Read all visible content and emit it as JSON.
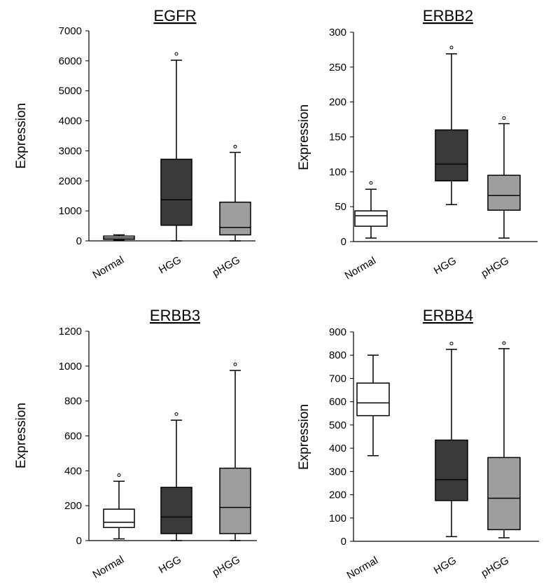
{
  "chart_data": [
    {
      "type": "boxplot",
      "title": "EGFR",
      "ylabel": "Expression",
      "ylim": [
        0,
        7000
      ],
      "yticks": [
        0,
        1000,
        2000,
        3000,
        4000,
        5000,
        6000,
        7000
      ],
      "categories": [
        "Normal",
        "HGG",
        "pHGG"
      ],
      "boxes": [
        {
          "category": "Normal",
          "fill": "#ffffff",
          "min": 20,
          "q1": 50,
          "median": 100,
          "q3": 160,
          "max": 200,
          "outlier": null
        },
        {
          "category": "HGG",
          "fill": "#3a3a3a",
          "min": 0,
          "q1": 520,
          "median": 1370,
          "q3": 2720,
          "max": 6020,
          "outlier": 6230
        },
        {
          "category": "pHGG",
          "fill": "#9e9e9e",
          "min": 0,
          "q1": 200,
          "median": 450,
          "q3": 1290,
          "max": 2950,
          "outlier": 3140
        }
      ]
    },
    {
      "type": "boxplot",
      "title": "ERBB2",
      "ylabel": "Expression",
      "ylim": [
        0,
        300
      ],
      "yticks": [
        0,
        50,
        100,
        150,
        200,
        250,
        300
      ],
      "categories": [
        "Normal",
        "HGG",
        "pHGG"
      ],
      "boxes": [
        {
          "category": "Normal",
          "fill": "#ffffff",
          "min": 5,
          "q1": 22,
          "median": 37,
          "q3": 44,
          "max": 75,
          "outlier": 84
        },
        {
          "category": "HGG",
          "fill": "#3a3a3a",
          "min": 53,
          "q1": 87,
          "median": 111,
          "q3": 160,
          "max": 269,
          "outlier": 278
        },
        {
          "category": "pHGG",
          "fill": "#9e9e9e",
          "min": 5,
          "q1": 45,
          "median": 66,
          "q3": 95,
          "max": 169,
          "outlier": 177
        }
      ]
    },
    {
      "type": "boxplot",
      "title": "ERBB3",
      "ylabel": "Expression",
      "ylim": [
        0,
        1200
      ],
      "yticks": [
        0,
        200,
        400,
        600,
        800,
        1000,
        1200
      ],
      "categories": [
        "Normal",
        "HGG",
        "pHGG"
      ],
      "boxes": [
        {
          "category": "Normal",
          "fill": "#ffffff",
          "min": 10,
          "q1": 75,
          "median": 105,
          "q3": 180,
          "max": 340,
          "outlier": 375
        },
        {
          "category": "HGG",
          "fill": "#3a3a3a",
          "min": 0,
          "q1": 40,
          "median": 135,
          "q3": 305,
          "max": 690,
          "outlier": 725
        },
        {
          "category": "pHGG",
          "fill": "#9e9e9e",
          "min": 0,
          "q1": 40,
          "median": 190,
          "q3": 415,
          "max": 975,
          "outlier": 1010
        }
      ]
    },
    {
      "type": "boxplot",
      "title": "ERBB4",
      "ylabel": "Expression",
      "ylim": [
        0,
        900
      ],
      "yticks": [
        0,
        100,
        200,
        300,
        400,
        500,
        600,
        700,
        800,
        900
      ],
      "categories": [
        "Normal",
        "HGG",
        "pHGG"
      ],
      "boxes": [
        {
          "category": "Normal",
          "fill": "#ffffff",
          "min": 368,
          "q1": 540,
          "median": 595,
          "q3": 680,
          "max": 800,
          "outlier": null
        },
        {
          "category": "HGG",
          "fill": "#3a3a3a",
          "min": 20,
          "q1": 175,
          "median": 265,
          "q3": 435,
          "max": 825,
          "outlier": 850
        },
        {
          "category": "pHGG",
          "fill": "#9e9e9e",
          "min": 15,
          "q1": 50,
          "median": 185,
          "q3": 360,
          "max": 828,
          "outlier": 852
        }
      ]
    }
  ]
}
